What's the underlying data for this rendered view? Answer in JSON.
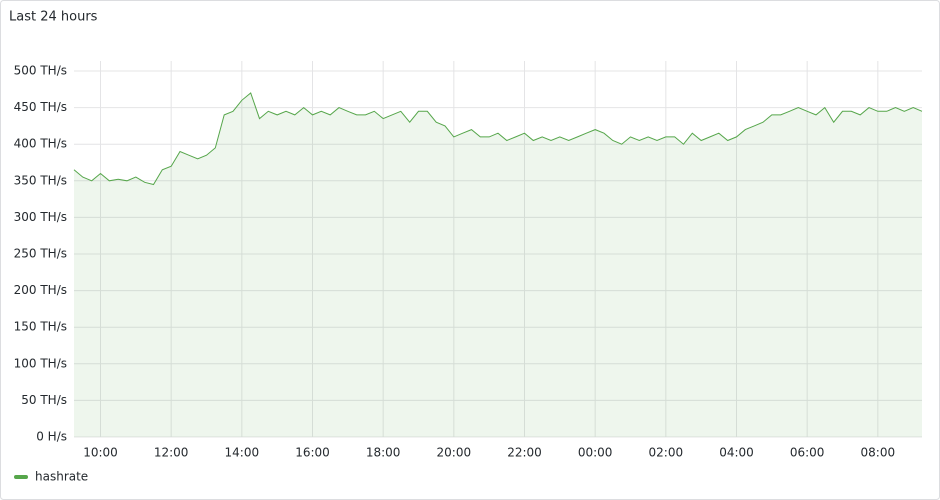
{
  "chart_data": {
    "type": "line",
    "title": "Last 24 hours",
    "x": [
      "09:15",
      "09:30",
      "09:45",
      "10:00",
      "10:15",
      "10:30",
      "10:45",
      "11:00",
      "11:15",
      "11:30",
      "11:45",
      "12:00",
      "12:15",
      "12:30",
      "12:45",
      "13:00",
      "13:15",
      "13:30",
      "13:45",
      "14:00",
      "14:15",
      "14:30",
      "14:45",
      "15:00",
      "15:15",
      "15:30",
      "15:45",
      "16:00",
      "16:15",
      "16:30",
      "16:45",
      "17:00",
      "17:15",
      "17:30",
      "17:45",
      "18:00",
      "18:15",
      "18:30",
      "18:45",
      "19:00",
      "19:15",
      "19:30",
      "19:45",
      "20:00",
      "20:15",
      "20:30",
      "20:45",
      "21:00",
      "21:15",
      "21:30",
      "21:45",
      "22:00",
      "22:15",
      "22:30",
      "22:45",
      "23:00",
      "23:15",
      "23:30",
      "23:45",
      "00:00",
      "00:15",
      "00:30",
      "00:45",
      "01:00",
      "01:15",
      "01:30",
      "01:45",
      "02:00",
      "02:15",
      "02:30",
      "02:45",
      "03:00",
      "03:15",
      "03:30",
      "03:45",
      "04:00",
      "04:15",
      "04:30",
      "04:45",
      "05:00",
      "05:15",
      "05:30",
      "05:45",
      "06:00",
      "06:15",
      "06:30",
      "06:45",
      "07:00",
      "07:15",
      "07:30",
      "07:45",
      "08:00",
      "08:15",
      "08:30",
      "08:45",
      "09:00",
      "09:15"
    ],
    "series": [
      {
        "name": "hashrate",
        "color": "#56a64b",
        "values": [
          365,
          355,
          350,
          360,
          350,
          352,
          350,
          355,
          348,
          345,
          365,
          370,
          390,
          385,
          380,
          385,
          395,
          440,
          445,
          460,
          470,
          435,
          445,
          440,
          445,
          440,
          450,
          440,
          445,
          440,
          450,
          445,
          440,
          440,
          445,
          435,
          440,
          445,
          430,
          445,
          445,
          430,
          425,
          410,
          415,
          420,
          410,
          410,
          415,
          405,
          410,
          415,
          405,
          410,
          405,
          410,
          405,
          410,
          415,
          420,
          415,
          405,
          400,
          410,
          405,
          410,
          405,
          410,
          410,
          400,
          415,
          405,
          410,
          415,
          405,
          410,
          420,
          425,
          430,
          440,
          440,
          445,
          450,
          445,
          440,
          450,
          430,
          445,
          445,
          440,
          450,
          445,
          445,
          450,
          445,
          450,
          445
        ]
      }
    ],
    "xticks": [
      "10:00",
      "12:00",
      "14:00",
      "16:00",
      "18:00",
      "20:00",
      "22:00",
      "00:00",
      "02:00",
      "04:00",
      "06:00",
      "08:00"
    ],
    "ylim": [
      0,
      500
    ],
    "yticks": [
      {
        "value": 0,
        "label": "0 H/s"
      },
      {
        "value": 50,
        "label": "50 TH/s"
      },
      {
        "value": 100,
        "label": "100 TH/s"
      },
      {
        "value": 150,
        "label": "150 TH/s"
      },
      {
        "value": 200,
        "label": "200 TH/s"
      },
      {
        "value": 250,
        "label": "250 TH/s"
      },
      {
        "value": 300,
        "label": "300 TH/s"
      },
      {
        "value": 350,
        "label": "350 TH/s"
      },
      {
        "value": 400,
        "label": "400 TH/s"
      },
      {
        "value": 450,
        "label": "450 TH/s"
      },
      {
        "value": 500,
        "label": "500 TH/s"
      }
    ],
    "grid": true
  }
}
